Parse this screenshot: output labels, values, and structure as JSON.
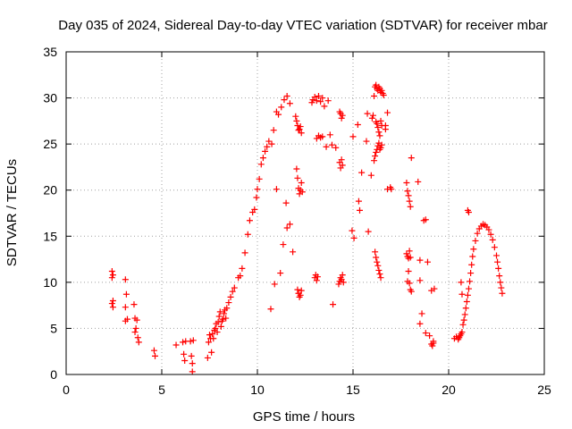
{
  "chart_data": {
    "type": "scatter",
    "title": "Day 035 of 2024, Sidereal Day-to-day VTEC variation (SDTVAR) for receiver mbar",
    "xlabel": "GPS time / hours",
    "ylabel": "SDTVAR / TECUs",
    "xlim": [
      0,
      25
    ],
    "ylim": [
      0,
      35
    ],
    "xticks": [
      0,
      5,
      10,
      15,
      20,
      25
    ],
    "yticks": [
      0,
      5,
      10,
      15,
      20,
      25,
      30,
      35
    ],
    "grid": true,
    "marker": "+",
    "color": "#ff0000",
    "series": [
      {
        "name": "SDTVAR",
        "x": [
          2.4,
          2.4,
          2.45,
          2.45,
          2.4,
          2.45,
          3.1,
          3.15,
          3.1,
          3.2,
          3.1,
          3.55,
          3.6,
          3.65,
          3.6,
          3.7,
          3.75,
          3.8,
          4.6,
          4.65,
          5.75,
          6.1,
          6.15,
          6.2,
          6.25,
          6.5,
          6.55,
          6.6,
          6.6,
          6.65,
          7.4,
          7.45,
          7.5,
          7.55,
          7.6,
          7.65,
          7.7,
          7.75,
          7.8,
          7.85,
          7.9,
          7.95,
          8.0,
          8.05,
          8.1,
          8.15,
          8.2,
          8.25,
          8.3,
          8.35,
          8.4,
          8.5,
          8.6,
          8.7,
          8.8,
          9.0,
          9.1,
          9.2,
          9.35,
          9.5,
          9.6,
          9.75,
          9.85,
          9.95,
          10.0,
          10.1,
          10.2,
          10.3,
          10.4,
          10.5,
          10.6,
          10.75,
          10.85,
          11.0,
          11.1,
          11.25,
          11.4,
          11.55,
          11.7,
          10.7,
          10.9,
          11.0,
          11.2,
          11.35,
          11.55,
          11.7,
          11.85,
          11.5,
          12.0,
          12.05,
          12.1,
          12.15,
          12.2,
          12.25,
          12.3,
          12.05,
          12.1,
          12.15,
          12.2,
          12.25,
          12.3,
          12.35,
          12.1,
          12.15,
          12.2,
          12.25,
          12.3,
          12.85,
          12.9,
          13.0,
          13.1,
          13.2,
          13.3,
          13.4,
          13.5,
          13.7,
          13.9,
          13.1,
          13.2,
          13.3,
          13.4,
          13.6,
          13.8,
          13.0,
          13.05,
          13.1,
          13.15,
          13.95,
          14.1,
          14.3,
          14.35,
          14.4,
          14.45,
          14.3,
          14.35,
          14.4,
          14.45,
          14.25,
          14.3,
          14.35,
          14.4,
          14.45,
          14.5,
          14.95,
          15.0,
          15.05,
          15.25,
          15.3,
          15.35,
          15.45,
          15.7,
          15.75,
          15.8,
          15.95,
          16.0,
          16.05,
          16.1,
          16.15,
          16.2,
          16.25,
          16.3,
          16.35,
          16.4,
          16.45,
          16.5,
          16.55,
          16.6,
          16.7,
          16.8,
          16.2,
          16.25,
          16.3,
          16.35,
          16.4,
          16.45,
          16.5,
          16.1,
          16.15,
          16.2,
          16.25,
          16.3,
          16.35,
          16.4,
          16.45,
          16.5,
          16.15,
          16.2,
          16.25,
          16.3,
          16.35,
          16.4,
          16.45,
          16.7,
          16.8,
          16.95,
          17.0,
          17.8,
          17.85,
          17.9,
          17.95,
          18.0,
          18.05,
          17.8,
          17.85,
          17.9,
          17.95,
          18.0,
          17.85,
          17.9,
          17.95,
          18.0,
          18.05,
          18.4,
          18.5,
          18.5,
          18.7,
          18.8,
          18.9,
          19.1,
          18.5,
          18.6,
          18.8,
          19.0,
          19.1,
          19.2,
          19.15,
          19.2,
          19.25,
          20.3,
          20.4,
          20.5,
          20.55,
          20.6,
          20.65,
          20.7,
          20.75,
          20.8,
          20.85,
          20.9,
          20.95,
          21.0,
          21.05,
          21.1,
          21.15,
          21.2,
          21.25,
          21.3,
          21.4,
          21.5,
          21.6,
          21.7,
          21.8,
          21.9,
          22.0,
          22.1,
          22.2,
          22.3,
          22.4,
          22.5,
          22.55,
          22.6,
          22.65,
          22.7,
          22.75,
          22.8,
          21.0,
          21.05,
          20.7,
          20.65
        ],
        "y": [
          11.2,
          10.5,
          8.0,
          7.3,
          7.7,
          10.8,
          10.3,
          8.7,
          7.3,
          6.0,
          5.8,
          7.6,
          6.1,
          5.0,
          4.6,
          5.9,
          4.0,
          3.5,
          2.6,
          2.0,
          3.2,
          3.5,
          2.2,
          1.5,
          3.6,
          3.6,
          2.0,
          1.2,
          0.3,
          3.7,
          1.8,
          3.5,
          4.3,
          3.9,
          2.4,
          4.4,
          3.9,
          4.8,
          5.0,
          5.5,
          4.6,
          5.7,
          6.3,
          6.8,
          5.2,
          5.8,
          6.0,
          6.6,
          7.0,
          6.1,
          7.2,
          7.8,
          8.4,
          9.0,
          9.4,
          10.5,
          10.7,
          11.5,
          13.2,
          15.2,
          16.7,
          17.6,
          17.9,
          19.2,
          20.1,
          21.2,
          22.8,
          23.5,
          24.2,
          24.7,
          25.3,
          25.0,
          26.5,
          28.5,
          28.2,
          29.0,
          29.8,
          30.2,
          29.4,
          7.1,
          9.8,
          20.1,
          11.0,
          14.1,
          15.9,
          16.3,
          13.3,
          18.6,
          28.0,
          27.5,
          27.0,
          26.5,
          26.6,
          26.9,
          26.2,
          22.3,
          21.3,
          20.2,
          19.6,
          20.0,
          20.8,
          19.8,
          9.2,
          8.8,
          8.4,
          8.6,
          9.1,
          29.5,
          29.8,
          30.1,
          29.7,
          30.2,
          29.6,
          30.0,
          29.1,
          29.7,
          24.9,
          25.6,
          25.9,
          25.7,
          25.8,
          24.7,
          26.0,
          10.5,
          10.8,
          10.2,
          10.6,
          7.6,
          24.6,
          28.5,
          28.3,
          27.8,
          28.1,
          23.0,
          22.4,
          23.3,
          22.7,
          9.8,
          10.1,
          10.5,
          10.3,
          10.8,
          10.0,
          15.6,
          25.8,
          14.8,
          27.1,
          18.8,
          17.8,
          21.9,
          25.3,
          28.3,
          15.5,
          21.6,
          27.8,
          28.1,
          30.2,
          31.2,
          31.4,
          31.0,
          30.8,
          31.2,
          31.0,
          30.6,
          30.8,
          30.5,
          30.3,
          27.0,
          28.4,
          27.4,
          27.2,
          26.8,
          26.3,
          25.9,
          27.5,
          27.0,
          23.2,
          23.7,
          24.1,
          24.4,
          24.8,
          25.1,
          24.4,
          24.6,
          24.9,
          13.3,
          12.7,
          12.2,
          11.8,
          11.3,
          10.9,
          10.5,
          26.6,
          20.1,
          20.3,
          20.1,
          20.8,
          19.9,
          19.4,
          18.8,
          18.2,
          23.5,
          13.1,
          12.8,
          12.6,
          13.4,
          12.7,
          10.1,
          11.2,
          9.9,
          9.2,
          9.0,
          20.9,
          12.4,
          10.2,
          16.7,
          16.8,
          12.2,
          9.1,
          5.5,
          6.6,
          4.5,
          4.2,
          3.3,
          3.6,
          3.1,
          3.4,
          9.3,
          3.9,
          4.1,
          3.8,
          4.0,
          4.2,
          4.4,
          4.6,
          5.4,
          5.9,
          6.5,
          7.2,
          7.9,
          8.6,
          9.3,
          10.1,
          11.0,
          11.9,
          12.8,
          13.6,
          14.5,
          15.3,
          15.8,
          16.1,
          16.3,
          16.2,
          16.0,
          15.7,
          15.2,
          14.6,
          13.8,
          12.9,
          12.2,
          11.5,
          10.7,
          10.0,
          9.4,
          8.8,
          17.8,
          17.6,
          8.7,
          10.0
        ]
      }
    ]
  }
}
